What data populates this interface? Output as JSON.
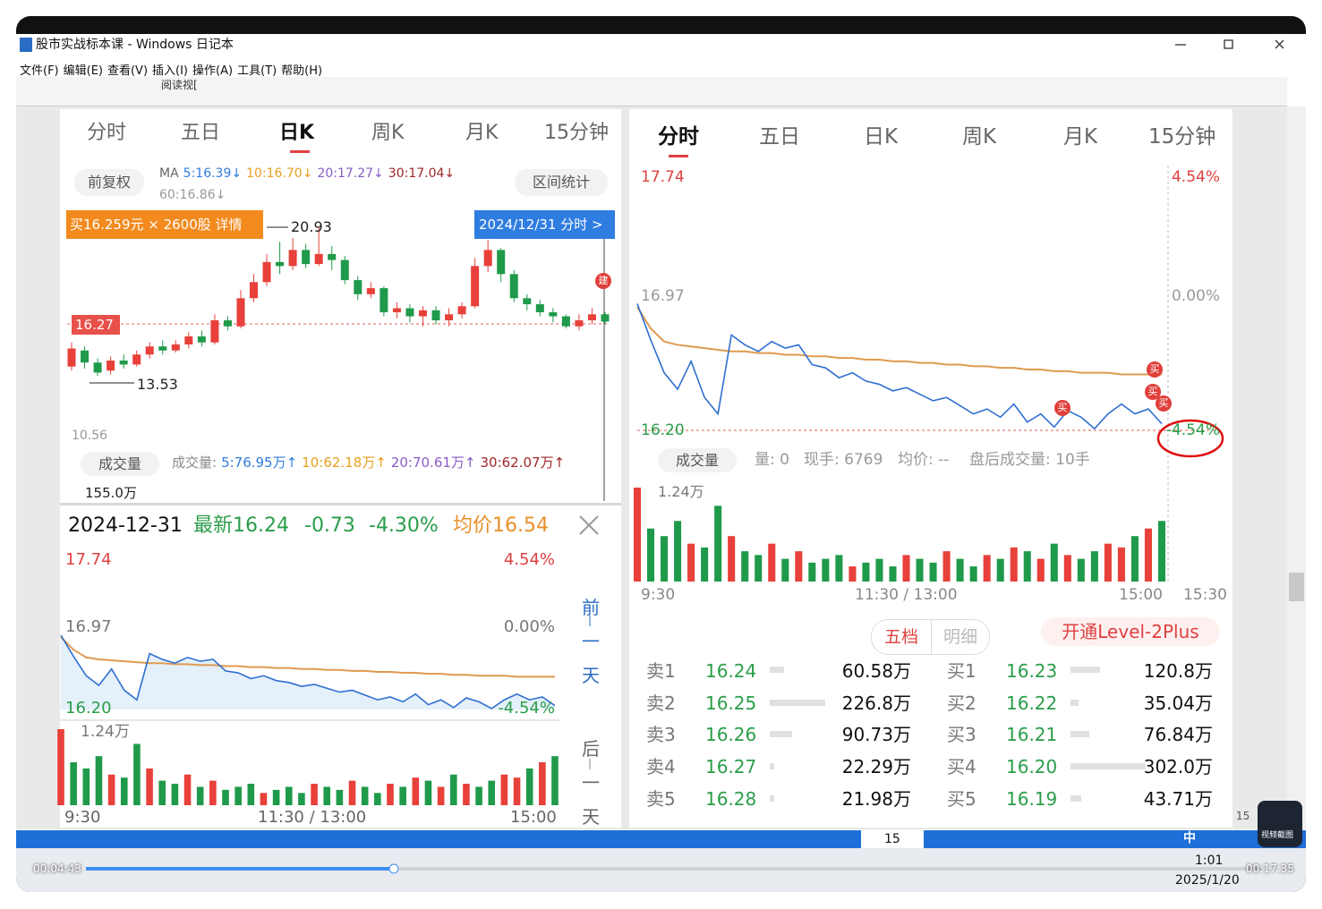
{
  "window": {
    "title": "股市实战标本课 - Windows 日记本",
    "menu": [
      "文件(F)",
      "编辑(E)",
      "查看(V)",
      "插入(I)",
      "操作(A)",
      "工具(T)",
      "帮助(H)"
    ],
    "toolbar_text": "阅读视["
  },
  "left_panel": {
    "tabs": [
      "分时",
      "五日",
      "日K",
      "周K",
      "月K",
      "15分钟"
    ],
    "active_tab": 2,
    "adjust": "前复权",
    "ma_prefix": "MA",
    "ma": [
      "5:16.39↓",
      "10:16.70↓",
      "20:17.27↓",
      "30:17.04↓"
    ],
    "ma60": "60:16.86↓",
    "range_stat": "区间统计",
    "trade_badge": "买16.259元 × 2600股 详情",
    "date_badge": "2024/12/31 分时 >",
    "high_label": "20.93",
    "current_label": "16.27",
    "low_label": "13.53",
    "axis_min": "10.56",
    "build_mark": "建",
    "chart": {
      "type": "candlestick",
      "ylim": [
        10.56,
        20.93
      ],
      "candles": [
        [
          14.0,
          14.9,
          15.2,
          13.8
        ],
        [
          14.8,
          14.2,
          15.0,
          13.9
        ],
        [
          14.2,
          13.7,
          14.4,
          13.53
        ],
        [
          13.8,
          14.3,
          14.5,
          13.6
        ],
        [
          14.3,
          14.1,
          14.6,
          13.9
        ],
        [
          14.1,
          14.6,
          14.8,
          14.0
        ],
        [
          14.6,
          15.0,
          15.2,
          14.4
        ],
        [
          15.0,
          14.8,
          15.3,
          14.6
        ],
        [
          14.8,
          15.1,
          15.3,
          14.7
        ],
        [
          15.1,
          15.5,
          15.7,
          14.9
        ],
        [
          15.5,
          15.2,
          15.8,
          15.0
        ],
        [
          15.2,
          16.3,
          16.6,
          15.1
        ],
        [
          16.3,
          16.0,
          16.5,
          15.8
        ],
        [
          16.0,
          17.4,
          17.8,
          15.9
        ],
        [
          17.4,
          18.2,
          18.6,
          17.2
        ],
        [
          18.2,
          19.2,
          19.6,
          18.0
        ],
        [
          19.2,
          19.0,
          20.2,
          18.6
        ],
        [
          19.0,
          19.8,
          20.4,
          18.8
        ],
        [
          19.8,
          19.1,
          20.1,
          18.9
        ],
        [
          19.1,
          19.6,
          20.93,
          19.0
        ],
        [
          19.6,
          19.3,
          20.0,
          18.8
        ],
        [
          19.3,
          18.3,
          19.5,
          18.1
        ],
        [
          18.3,
          17.6,
          18.5,
          17.3
        ],
        [
          17.6,
          17.9,
          18.2,
          17.4
        ],
        [
          17.9,
          16.7,
          18.0,
          16.5
        ],
        [
          16.7,
          16.9,
          17.2,
          16.4
        ],
        [
          16.9,
          16.5,
          17.1,
          16.2
        ],
        [
          16.5,
          16.8,
          17.0,
          16.0
        ],
        [
          16.8,
          16.3,
          17.0,
          16.1
        ],
        [
          16.3,
          16.6,
          16.9,
          16.0
        ],
        [
          16.6,
          17.0,
          17.2,
          16.4
        ],
        [
          17.0,
          19.0,
          19.4,
          16.9
        ],
        [
          19.0,
          19.8,
          20.3,
          18.7
        ],
        [
          19.8,
          18.6,
          19.9,
          18.2
        ],
        [
          18.6,
          17.4,
          18.8,
          17.2
        ],
        [
          17.4,
          17.1,
          17.6,
          16.8
        ],
        [
          17.1,
          16.7,
          17.3,
          16.5
        ],
        [
          16.7,
          16.5,
          16.9,
          16.2
        ],
        [
          16.5,
          16.0,
          16.6,
          15.9
        ],
        [
          16.0,
          16.3,
          16.6,
          15.8
        ],
        [
          16.3,
          16.6,
          16.9,
          16.1
        ],
        [
          16.6,
          16.24,
          16.7,
          16.1
        ]
      ]
    },
    "volume_button": "成交量",
    "volume_prefix": "成交量:",
    "volume_stats": [
      "5:76.95万↑",
      "10:62.18万↑",
      "20:70.61万↑",
      "30:62.07万↑"
    ],
    "volume_max": "155.0万"
  },
  "quote": {
    "date": "2024-12-31",
    "latest": "最新16.24",
    "change": "-0.73",
    "change_pct": "-4.30%",
    "avg": "均价16.54",
    "prev_day": "前一天",
    "next_day": "后一天"
  },
  "intraday": {
    "type": "line",
    "ylim": [
      16.2,
      17.74
    ],
    "volume_ylim": [
      0,
      1.24
    ],
    "labels": {
      "top": "17.74",
      "top_pct": "4.54%",
      "mid": "16.97",
      "mid_pct": "0.00%",
      "bottom": "16.20",
      "bottom_pct": "-4.54%",
      "vol_max": "1.24万"
    },
    "times": [
      "9:30",
      "11:30 / 13:00",
      "15:00",
      "15:30"
    ],
    "price": [
      16.97,
      16.75,
      16.55,
      16.45,
      16.62,
      16.4,
      16.3,
      16.78,
      16.72,
      16.68,
      16.74,
      16.7,
      16.72,
      16.6,
      16.58,
      16.52,
      16.55,
      16.5,
      16.48,
      16.44,
      16.46,
      16.42,
      16.38,
      16.4,
      16.35,
      16.3,
      16.33,
      16.28,
      16.36,
      16.25,
      16.3,
      16.22,
      16.32,
      16.28,
      16.21,
      16.3,
      16.36,
      16.3,
      16.33,
      16.24
    ],
    "avg": [
      16.95,
      16.82,
      16.74,
      16.72,
      16.71,
      16.7,
      16.69,
      16.68,
      16.68,
      16.67,
      16.67,
      16.66,
      16.66,
      16.65,
      16.65,
      16.64,
      16.64,
      16.63,
      16.63,
      16.62,
      16.62,
      16.61,
      16.61,
      16.6,
      16.6,
      16.59,
      16.59,
      16.58,
      16.58,
      16.57,
      16.57,
      16.56,
      16.56,
      16.55,
      16.55,
      16.55,
      16.54,
      16.54,
      16.54,
      16.54
    ],
    "volume": [
      1.24,
      0.7,
      0.6,
      0.8,
      0.5,
      0.45,
      1.0,
      0.6,
      0.4,
      0.35,
      0.5,
      0.3,
      0.4,
      0.25,
      0.3,
      0.35,
      0.2,
      0.25,
      0.3,
      0.2,
      0.35,
      0.3,
      0.25,
      0.4,
      0.3,
      0.2,
      0.35,
      0.3,
      0.45,
      0.4,
      0.3,
      0.5,
      0.35,
      0.3,
      0.4,
      0.5,
      0.45,
      0.6,
      0.7,
      0.8
    ]
  },
  "right_panel": {
    "tabs": [
      "分时",
      "五日",
      "日K",
      "周K",
      "月K",
      "15分钟"
    ],
    "active_tab": 0,
    "volume_button": "成交量",
    "volume_info": [
      "量: 0",
      "现手: 6769",
      "均价: --",
      "盘后成交量: 10手"
    ],
    "buy_mark": "买"
  },
  "order_book": {
    "tabs": [
      "五档",
      "明细"
    ],
    "level2": "开通Level-2Plus",
    "sell": [
      [
        "卖1",
        "16.24",
        "60.58万"
      ],
      [
        "卖2",
        "16.25",
        "226.8万"
      ],
      [
        "卖3",
        "16.26",
        "90.73万"
      ],
      [
        "卖4",
        "16.27",
        "22.29万"
      ],
      [
        "卖5",
        "16.28",
        "21.98万"
      ]
    ],
    "buy": [
      [
        "买1",
        "16.23",
        "120.8万"
      ],
      [
        "买2",
        "16.22",
        "35.04万"
      ],
      [
        "买3",
        "16.21",
        "76.84万"
      ],
      [
        "买4",
        "16.20",
        "302.0万"
      ],
      [
        "买5",
        "16.19",
        "43.71万"
      ]
    ]
  },
  "taskbar": {
    "page": "15",
    "side_page": "15",
    "ime": "中",
    "time": "1:01",
    "date": "2025/1/20",
    "elapsed": "00:04:43",
    "duration": "00:17:35",
    "screenshot": "视频截图"
  }
}
